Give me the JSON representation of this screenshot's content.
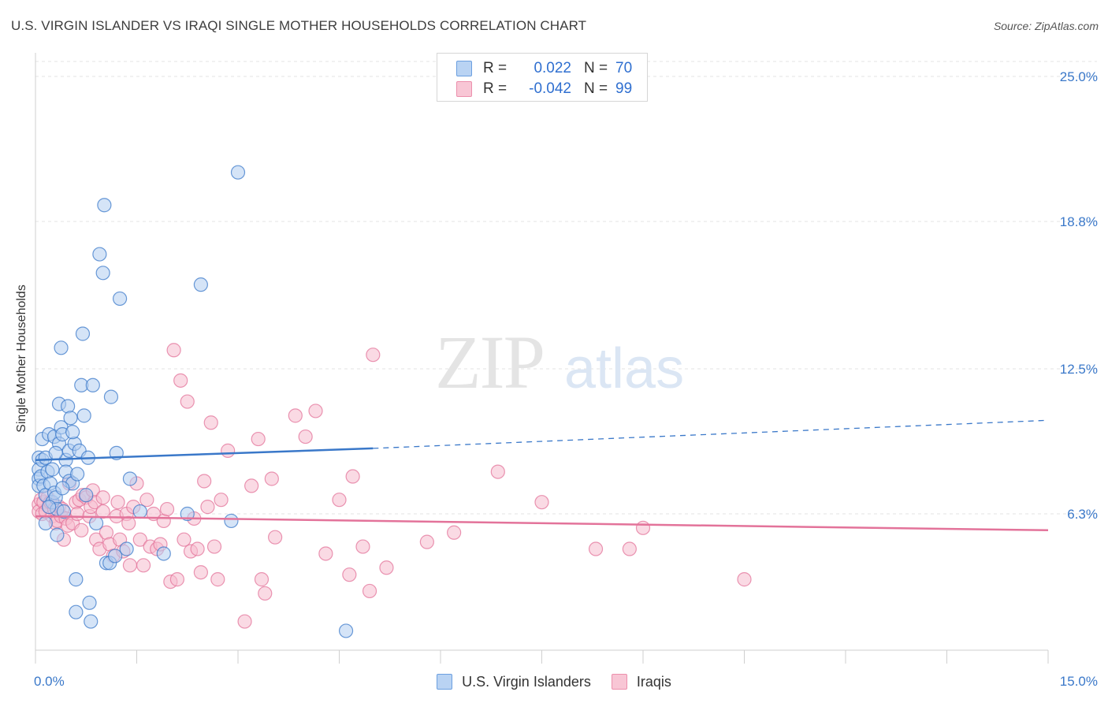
{
  "title": "U.S. VIRGIN ISLANDER VS IRAQI SINGLE MOTHER HOUSEHOLDS CORRELATION CHART",
  "source": "Source: ZipAtlas.com",
  "watermark": {
    "zip": "ZIP",
    "atlas": "atlas"
  },
  "legend": {
    "r_label": "R =",
    "n_label": "N =",
    "rows": [
      {
        "name": "U.S. Virgin Islanders",
        "r": "0.022",
        "n": "70",
        "color": "#6b9fe0",
        "fill": "#b9d3f3"
      },
      {
        "name": "Iraqis",
        "r": "-0.042",
        "n": "99",
        "color": "#ec8fac",
        "fill": "#f8c6d5"
      }
    ]
  },
  "chart_data": {
    "type": "scatter",
    "title": "U.S. VIRGIN ISLANDER VS IRAQI SINGLE MOTHER HOUSEHOLDS CORRELATION CHART",
    "xlabel": "",
    "ylabel": "Single Mother Households",
    "xlim": [
      0,
      15
    ],
    "ylim": [
      0,
      25
    ],
    "x_tick_labels": [
      "0.0%",
      "15.0%"
    ],
    "y_ticks": [
      {
        "value": 6.3,
        "label": "6.3%"
      },
      {
        "value": 12.5,
        "label": "12.5%"
      },
      {
        "value": 18.8,
        "label": "18.8%"
      },
      {
        "value": 25.0,
        "label": "25.0%"
      }
    ],
    "grid": true,
    "legend_position": "top-center",
    "series": [
      {
        "name": "U.S. Virgin Islanders",
        "color": "#3a78c9",
        "point_fill": "#b3cdf0",
        "trend": {
          "x": [
            0,
            5.0
          ],
          "y": [
            8.6,
            9.1
          ],
          "extended": {
            "x": [
              5.0,
              15.0
            ],
            "y": [
              9.1,
              10.3
            ]
          }
        },
        "points": [
          [
            0.05,
            8.7
          ],
          [
            0.05,
            8.2
          ],
          [
            0.05,
            7.8
          ],
          [
            0.05,
            7.5
          ],
          [
            0.08,
            7.9
          ],
          [
            0.1,
            8.6
          ],
          [
            0.1,
            9.5
          ],
          [
            0.12,
            7.5
          ],
          [
            0.15,
            7.1
          ],
          [
            0.15,
            8.7
          ],
          [
            0.18,
            8.1
          ],
          [
            0.2,
            9.7
          ],
          [
            0.22,
            7.6
          ],
          [
            0.25,
            6.8
          ],
          [
            0.28,
            7.2
          ],
          [
            0.28,
            9.6
          ],
          [
            0.3,
            7.0
          ],
          [
            0.32,
            5.4
          ],
          [
            0.32,
            6.5
          ],
          [
            0.35,
            9.3
          ],
          [
            0.35,
            11.0
          ],
          [
            0.38,
            13.4
          ],
          [
            0.38,
            10.0
          ],
          [
            0.4,
            9.7
          ],
          [
            0.42,
            6.4
          ],
          [
            0.45,
            8.6
          ],
          [
            0.45,
            8.1
          ],
          [
            0.48,
            10.9
          ],
          [
            0.5,
            9.0
          ],
          [
            0.5,
            7.7
          ],
          [
            0.52,
            10.4
          ],
          [
            0.55,
            7.6
          ],
          [
            0.58,
            9.3
          ],
          [
            0.6,
            3.5
          ],
          [
            0.6,
            2.1
          ],
          [
            0.62,
            8.0
          ],
          [
            0.65,
            9.0
          ],
          [
            0.68,
            11.8
          ],
          [
            0.7,
            14.0
          ],
          [
            0.72,
            10.5
          ],
          [
            0.75,
            7.1
          ],
          [
            0.78,
            8.7
          ],
          [
            0.8,
            2.5
          ],
          [
            0.82,
            1.7
          ],
          [
            0.85,
            11.8
          ],
          [
            0.9,
            5.9
          ],
          [
            1.0,
            16.6
          ],
          [
            1.02,
            19.5
          ],
          [
            1.05,
            4.2
          ],
          [
            1.1,
            4.2
          ],
          [
            1.12,
            11.3
          ],
          [
            1.18,
            4.5
          ],
          [
            1.2,
            8.9
          ],
          [
            1.25,
            15.5
          ],
          [
            1.35,
            4.8
          ],
          [
            1.4,
            7.8
          ],
          [
            1.55,
            6.4
          ],
          [
            1.9,
            4.6
          ],
          [
            2.25,
            6.3
          ],
          [
            2.45,
            16.1
          ],
          [
            2.9,
            6.0
          ],
          [
            3.0,
            20.9
          ],
          [
            4.6,
            1.3
          ],
          [
            0.95,
            17.4
          ],
          [
            0.15,
            5.9
          ],
          [
            0.4,
            7.4
          ],
          [
            0.25,
            8.2
          ],
          [
            0.55,
            9.8
          ],
          [
            0.2,
            6.6
          ],
          [
            0.3,
            8.9
          ]
        ]
      },
      {
        "name": "Iraqis",
        "color": "#e3739a",
        "point_fill": "#f6bccd",
        "trend": {
          "x": [
            0,
            15.0
          ],
          "y": [
            6.2,
            5.6
          ]
        },
        "points": [
          [
            0.05,
            6.7
          ],
          [
            0.05,
            6.4
          ],
          [
            0.08,
            6.9
          ],
          [
            0.1,
            6.3
          ],
          [
            0.12,
            6.8
          ],
          [
            0.15,
            6.4
          ],
          [
            0.18,
            7.0
          ],
          [
            0.2,
            6.6
          ],
          [
            0.22,
            6.8
          ],
          [
            0.25,
            6.2
          ],
          [
            0.28,
            6.5
          ],
          [
            0.3,
            5.9
          ],
          [
            0.32,
            6.0
          ],
          [
            0.35,
            6.6
          ],
          [
            0.38,
            6.2
          ],
          [
            0.4,
            6.5
          ],
          [
            0.42,
            5.2
          ],
          [
            0.45,
            6.1
          ],
          [
            0.48,
            5.8
          ],
          [
            0.5,
            7.6
          ],
          [
            0.55,
            5.9
          ],
          [
            0.6,
            6.8
          ],
          [
            0.62,
            6.3
          ],
          [
            0.65,
            6.9
          ],
          [
            0.68,
            5.6
          ],
          [
            0.7,
            7.1
          ],
          [
            0.75,
            7.0
          ],
          [
            0.8,
            6.2
          ],
          [
            0.82,
            6.6
          ],
          [
            0.85,
            7.3
          ],
          [
            0.88,
            6.8
          ],
          [
            0.9,
            5.2
          ],
          [
            0.95,
            4.8
          ],
          [
            1.0,
            6.4
          ],
          [
            1.05,
            5.5
          ],
          [
            1.1,
            5.0
          ],
          [
            1.15,
            4.5
          ],
          [
            1.2,
            6.2
          ],
          [
            1.22,
            6.8
          ],
          [
            1.25,
            5.2
          ],
          [
            1.3,
            4.7
          ],
          [
            1.35,
            6.3
          ],
          [
            1.38,
            5.9
          ],
          [
            1.4,
            4.1
          ],
          [
            1.45,
            6.6
          ],
          [
            1.5,
            7.6
          ],
          [
            1.55,
            5.2
          ],
          [
            1.6,
            4.1
          ],
          [
            1.65,
            6.9
          ],
          [
            1.7,
            4.9
          ],
          [
            1.75,
            6.3
          ],
          [
            1.8,
            4.8
          ],
          [
            1.85,
            5.0
          ],
          [
            1.9,
            6.0
          ],
          [
            1.95,
            6.5
          ],
          [
            2.0,
            3.4
          ],
          [
            2.05,
            13.3
          ],
          [
            2.1,
            3.5
          ],
          [
            2.15,
            12.0
          ],
          [
            2.2,
            5.2
          ],
          [
            2.25,
            11.1
          ],
          [
            2.3,
            4.7
          ],
          [
            2.35,
            6.1
          ],
          [
            2.4,
            4.8
          ],
          [
            2.45,
            3.8
          ],
          [
            2.5,
            7.7
          ],
          [
            2.55,
            6.6
          ],
          [
            2.6,
            10.2
          ],
          [
            2.65,
            4.9
          ],
          [
            2.7,
            3.5
          ],
          [
            2.75,
            6.9
          ],
          [
            2.85,
            9.0
          ],
          [
            3.1,
            1.7
          ],
          [
            3.2,
            7.5
          ],
          [
            3.3,
            9.5
          ],
          [
            3.35,
            3.5
          ],
          [
            3.4,
            2.9
          ],
          [
            3.5,
            7.8
          ],
          [
            3.55,
            5.3
          ],
          [
            3.85,
            10.5
          ],
          [
            4.0,
            9.6
          ],
          [
            4.15,
            10.7
          ],
          [
            4.3,
            4.6
          ],
          [
            4.5,
            6.9
          ],
          [
            4.65,
            3.7
          ],
          [
            4.7,
            7.9
          ],
          [
            4.85,
            4.9
          ],
          [
            4.95,
            3.0
          ],
          [
            5.0,
            13.1
          ],
          [
            5.2,
            4.0
          ],
          [
            5.8,
            5.1
          ],
          [
            6.2,
            5.5
          ],
          [
            6.85,
            8.1
          ],
          [
            7.5,
            6.8
          ],
          [
            8.3,
            4.8
          ],
          [
            8.8,
            4.8
          ],
          [
            9.0,
            5.7
          ],
          [
            10.5,
            3.5
          ],
          [
            1.0,
            7.0
          ]
        ]
      }
    ]
  }
}
